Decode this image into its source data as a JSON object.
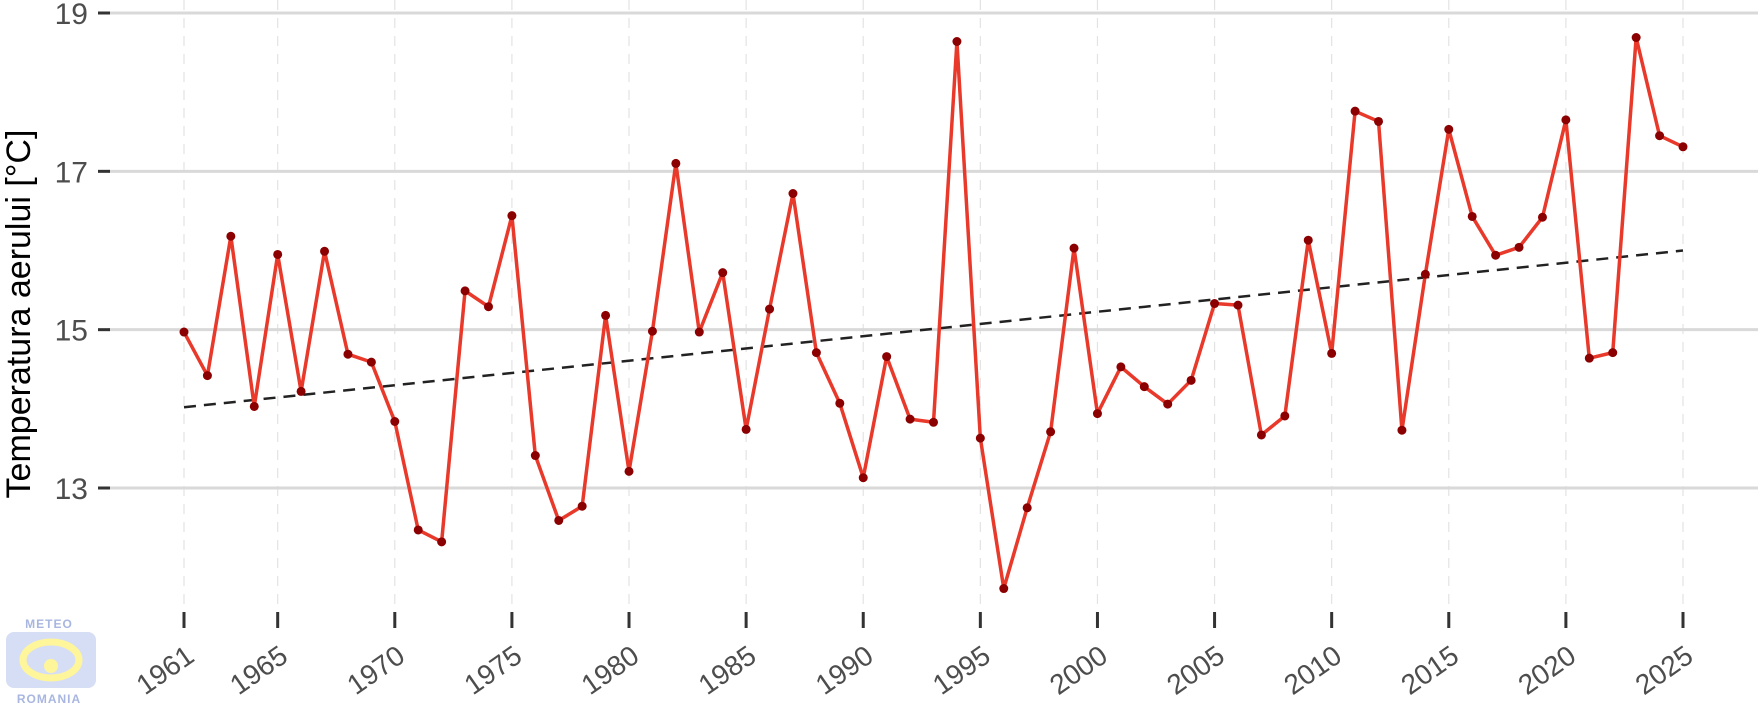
{
  "chart_data": {
    "type": "line",
    "ylabel": "Temperatura aerului [°C]",
    "xlabel": "",
    "xlim": [
      1961,
      2025
    ],
    "ylim": [
      11.4,
      19.1
    ],
    "yticks": [
      13,
      15,
      17,
      19
    ],
    "xticks": [
      1961,
      1965,
      1970,
      1975,
      1980,
      1985,
      1990,
      1995,
      2000,
      2005,
      2010,
      2015,
      2020,
      2025
    ],
    "grid": true,
    "series": [
      {
        "type": "line",
        "color": "#e8392b",
        "marker_color": "#8b0000",
        "x": [
          1961,
          1962,
          1963,
          1964,
          1965,
          1966,
          1967,
          1968,
          1969,
          1970,
          1971,
          1972,
          1973,
          1974,
          1975,
          1976,
          1977,
          1978,
          1979,
          1980,
          1981,
          1982,
          1983,
          1984,
          1985,
          1986,
          1987,
          1988,
          1989,
          1990,
          1991,
          1992,
          1993,
          1994,
          1995,
          1996,
          1997,
          1998,
          1999,
          2000,
          2001,
          2002,
          2003,
          2004,
          2005,
          2006,
          2007,
          2008,
          2009,
          2010,
          2011,
          2012,
          2013,
          2014,
          2015,
          2016,
          2017,
          2018,
          2019,
          2020,
          2021,
          2022,
          2023,
          2024,
          2025
        ],
        "y": [
          14.97,
          14.42,
          16.18,
          14.03,
          15.95,
          14.22,
          15.99,
          14.69,
          14.59,
          13.84,
          12.47,
          12.32,
          15.49,
          15.29,
          16.44,
          13.41,
          12.59,
          12.77,
          15.18,
          13.21,
          14.98,
          17.1,
          14.97,
          15.72,
          13.74,
          15.26,
          16.72,
          14.71,
          14.07,
          13.13,
          14.66,
          13.87,
          13.83,
          18.64,
          13.63,
          11.73,
          12.75,
          13.71,
          16.03,
          13.94,
          14.53,
          14.28,
          14.06,
          14.36,
          15.33,
          15.31,
          13.67,
          13.91,
          16.13,
          14.7,
          17.76,
          17.63,
          13.73,
          15.7,
          17.53,
          16.43,
          15.94,
          16.04,
          16.42,
          17.65,
          14.64,
          14.71,
          18.69,
          17.45,
          17.31
        ]
      },
      {
        "type": "trend",
        "color": "#222222",
        "dashed": true,
        "x": [
          1961,
          2025
        ],
        "y": [
          14.02,
          16.0
        ]
      }
    ]
  },
  "logo": {
    "top_text": "METEO",
    "bottom_text": "ROMANIA"
  }
}
